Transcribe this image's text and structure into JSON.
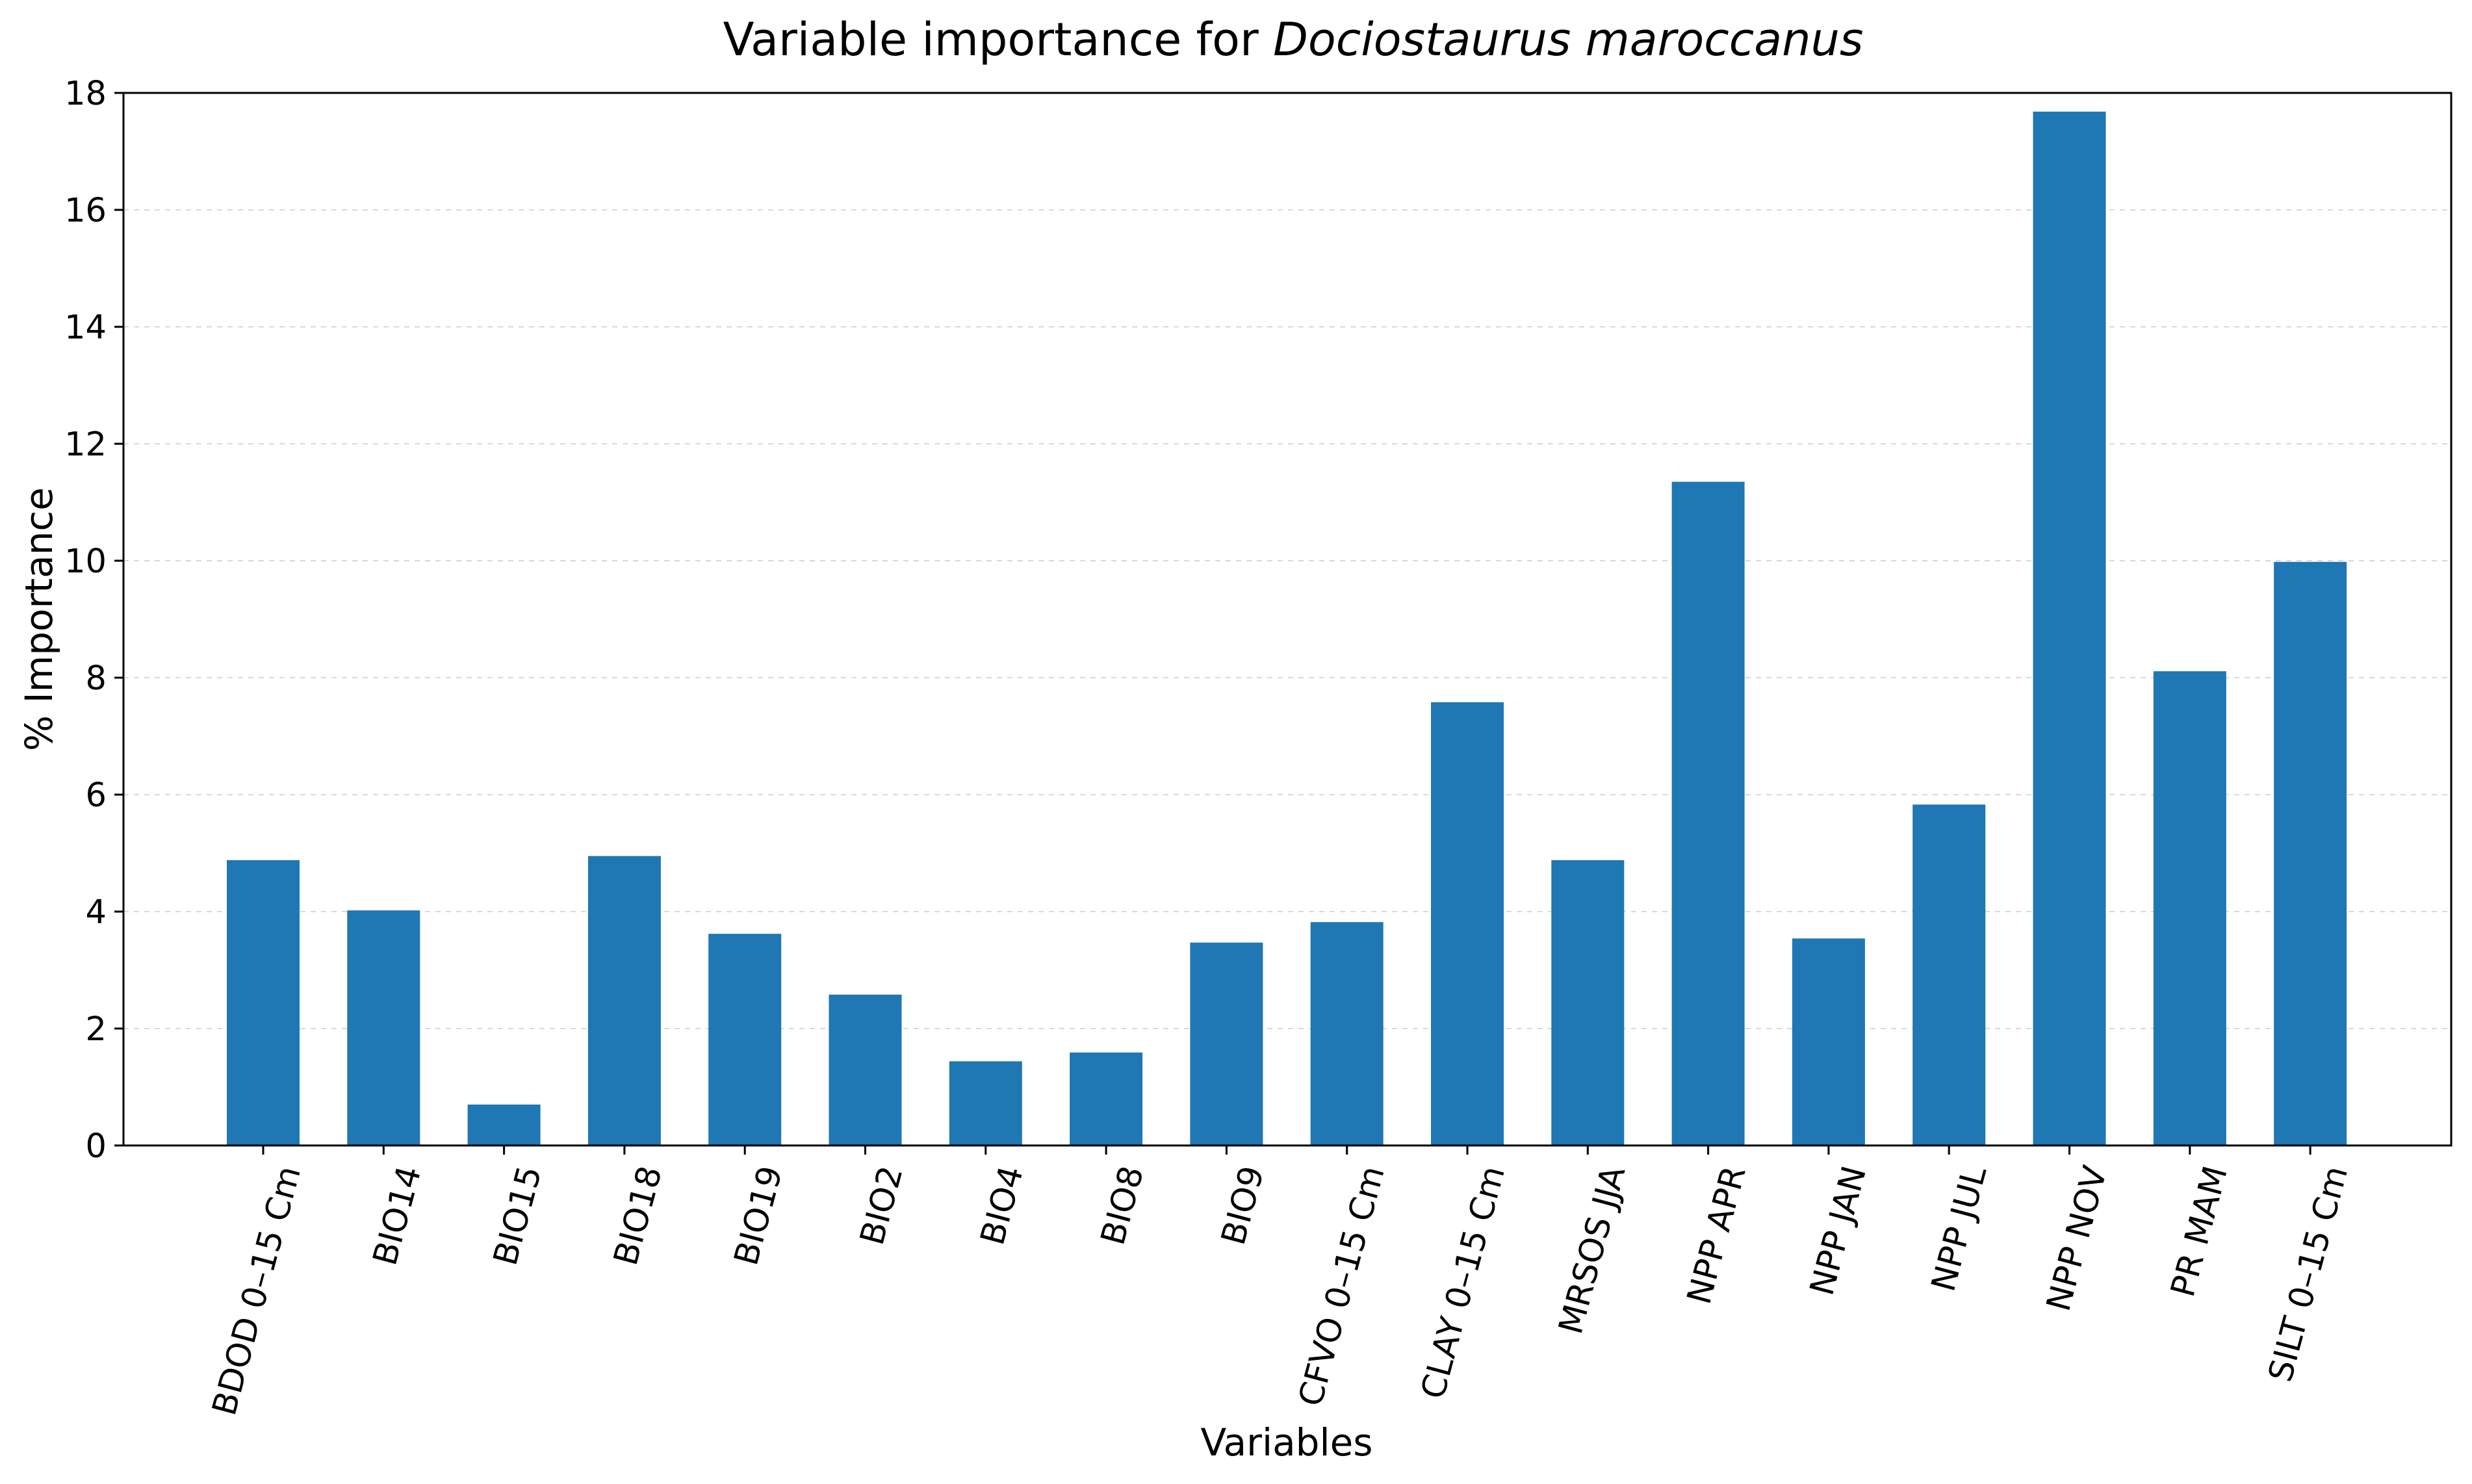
{
  "chart_data": {
    "type": "bar",
    "title_prefix": "Variable importance for ",
    "title_species": "Dociostaurus maroccanus",
    "xlabel": "Variables",
    "ylabel": "% Importance",
    "ylim": [
      0,
      18
    ],
    "yticks": [
      0,
      2,
      4,
      6,
      8,
      10,
      12,
      14,
      16,
      18
    ],
    "grid": "horizontal, light dashed",
    "legend": "none",
    "bar_color": "#1f77b4",
    "categories": [
      "BDOD 0–15 Cm",
      "BIO14",
      "BIO15",
      "BIO18",
      "BIO19",
      "BIO2",
      "BIO4",
      "BIO8",
      "BIO9",
      "CFVO 0–15 Cm",
      "CLAY 0–15 Cm",
      "MRSOS JJA",
      "NPP APR",
      "NPP JAN",
      "NPP JUL",
      "NPP NOV",
      "PR MAM",
      "SILT 0–15 Cm"
    ],
    "values": [
      4.88,
      4.02,
      0.7,
      4.95,
      3.62,
      2.58,
      1.44,
      1.59,
      3.47,
      3.82,
      7.58,
      4.88,
      11.35,
      3.54,
      5.83,
      17.68,
      8.11,
      9.98
    ]
  }
}
